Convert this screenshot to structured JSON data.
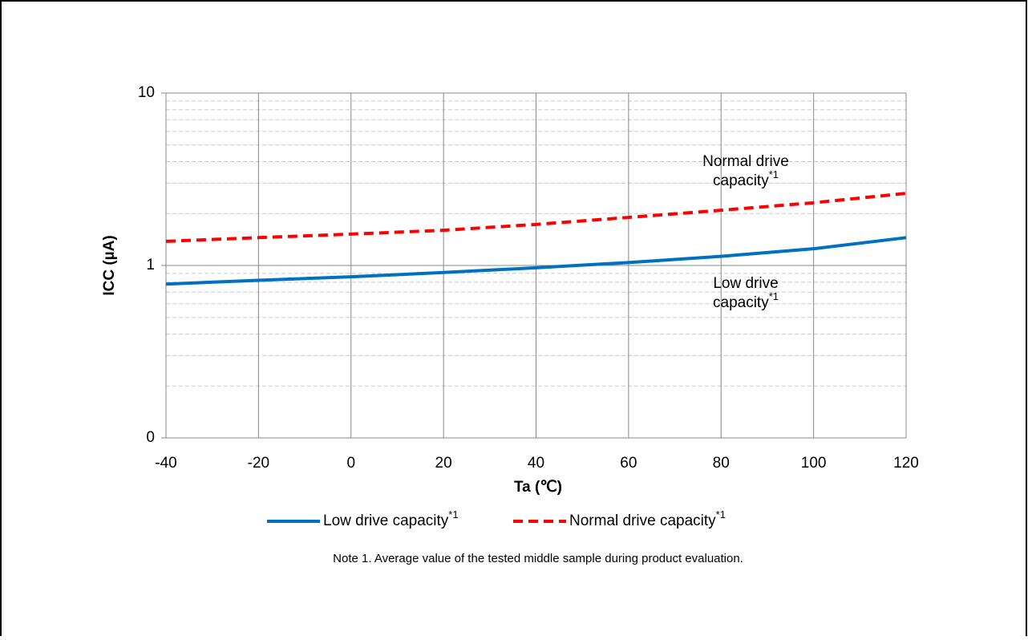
{
  "chart_data": {
    "type": "line",
    "x_label": "Ta (℃)",
    "y_label": "ICC (µA)",
    "x": [
      -40,
      -20,
      0,
      20,
      40,
      60,
      80,
      100,
      120
    ],
    "series": [
      {
        "name": "Low drive capacity",
        "color": "#0070c0",
        "dash": false,
        "values": [
          0.78,
          0.82,
          0.86,
          0.91,
          0.97,
          1.04,
          1.13,
          1.25,
          1.45
        ]
      },
      {
        "name": "Normal drive capacity",
        "color": "#ff0000",
        "dash": true,
        "values": [
          1.38,
          1.45,
          1.52,
          1.6,
          1.73,
          1.9,
          2.09,
          2.31,
          2.62
        ]
      }
    ],
    "note_marker": "*1",
    "annotations": [
      {
        "lines": [
          "Normal drive",
          "capacity"
        ]
      },
      {
        "lines": [
          "Low drive",
          "capacity"
        ]
      }
    ],
    "note": "Note 1. Average value of the tested middle sample during product evaluation.",
    "xlim": [
      -40,
      120
    ],
    "xticks": [
      -40,
      -20,
      0,
      20,
      40,
      60,
      80,
      100,
      120
    ],
    "ylim": [
      0.1,
      10
    ],
    "yticks": [
      {
        "value": 0.1,
        "label": "0"
      },
      1,
      10
    ],
    "log_y": true,
    "grid": true,
    "legend": "bottom"
  }
}
